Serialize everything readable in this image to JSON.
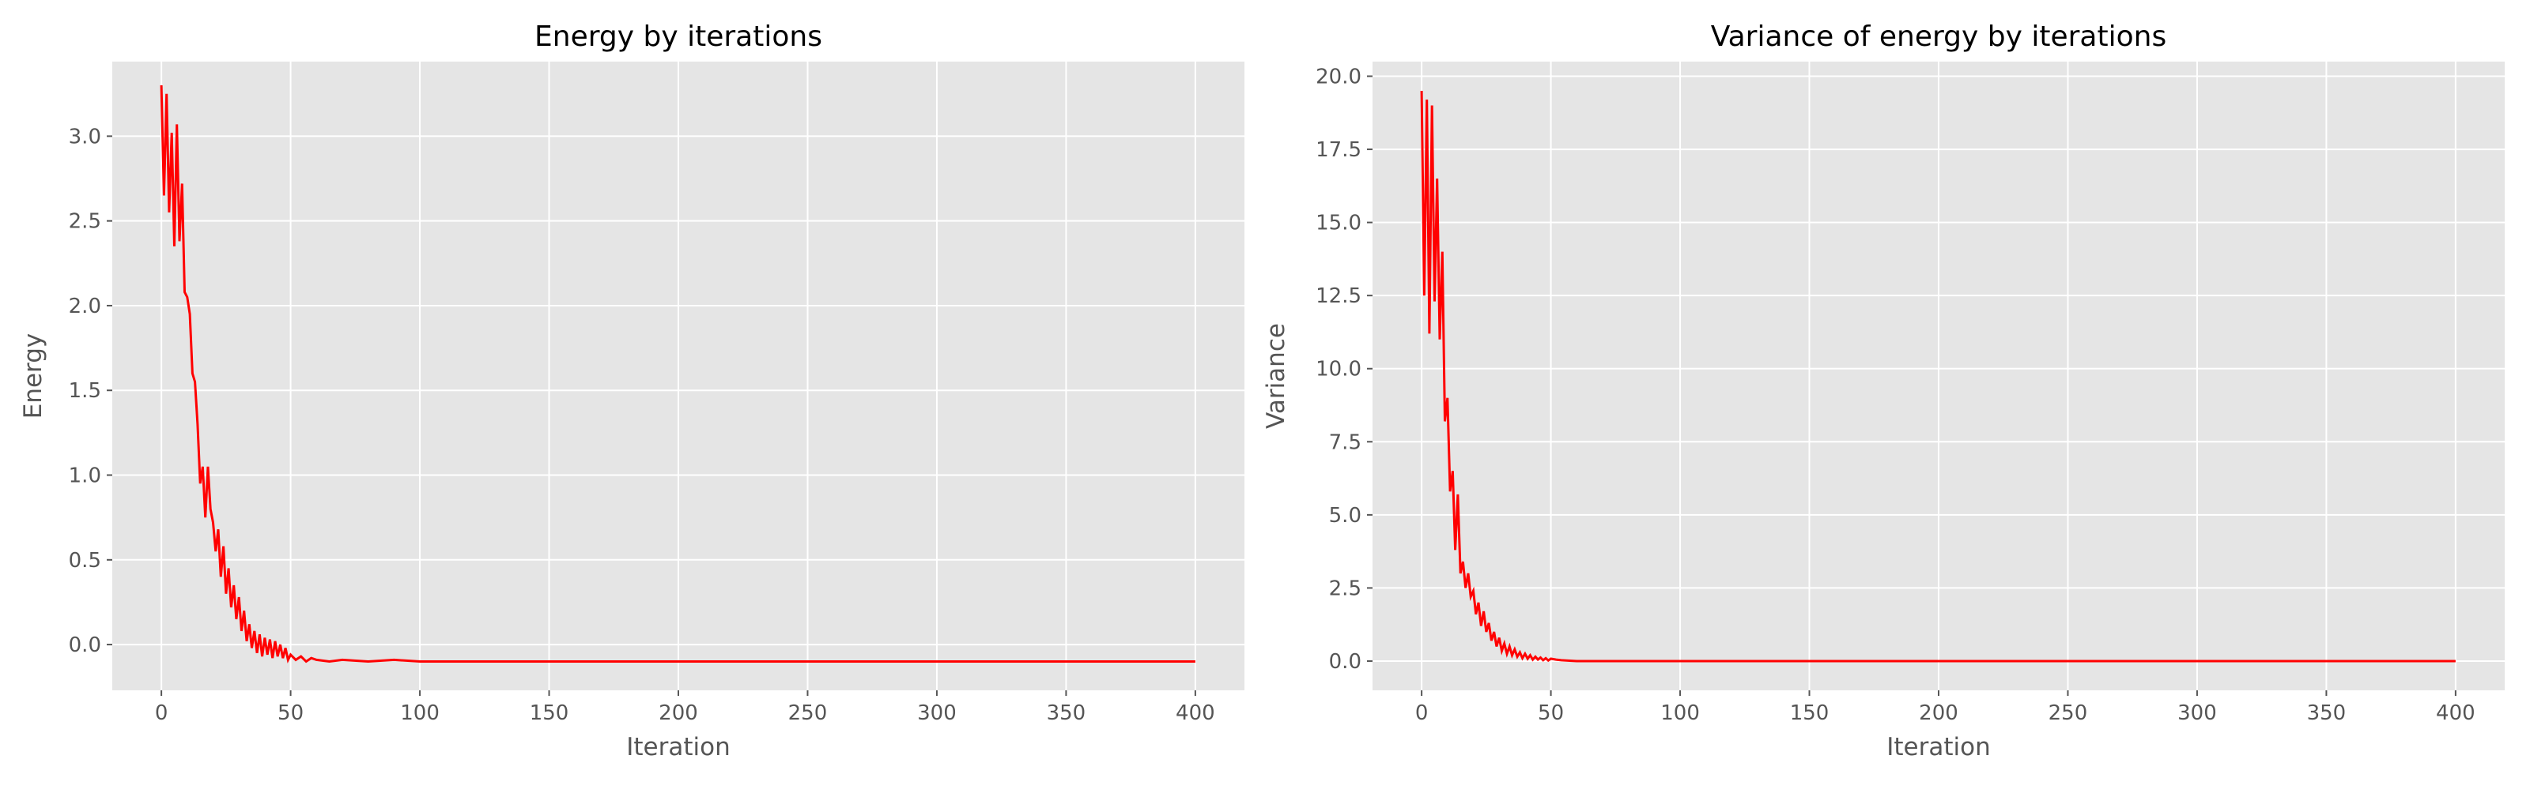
{
  "colors": {
    "plot_background": "#E5E5E5",
    "grid": "#FFFFFF",
    "line": "#FF0000",
    "text": "#555555",
    "title": "#000000"
  },
  "chart_data": [
    {
      "type": "line",
      "title": "Energy by iterations",
      "xlabel": "Iteration",
      "ylabel": "Energy",
      "xlim": [
        -19,
        419
      ],
      "ylim": [
        -0.27,
        3.44
      ],
      "xticks": [
        0,
        50,
        100,
        150,
        200,
        250,
        300,
        350,
        400
      ],
      "yticks": [
        0.0,
        0.5,
        1.0,
        1.5,
        2.0,
        2.5,
        3.0
      ],
      "ytick_labels": [
        "0.0",
        "0.5",
        "1.0",
        "1.5",
        "2.0",
        "2.5",
        "3.0"
      ],
      "grid": true,
      "legend": "none",
      "series": [
        {
          "color": "#FF0000",
          "x": [
            0,
            1,
            2,
            3,
            4,
            5,
            6,
            7,
            8,
            9,
            10,
            11,
            12,
            13,
            14,
            15,
            16,
            17,
            18,
            19,
            20,
            21,
            22,
            23,
            24,
            25,
            26,
            27,
            28,
            29,
            30,
            31,
            32,
            33,
            34,
            35,
            36,
            37,
            38,
            39,
            40,
            41,
            42,
            43,
            44,
            45,
            46,
            47,
            48,
            49,
            50,
            52,
            54,
            56,
            58,
            60,
            65,
            70,
            80,
            90,
            100,
            120,
            140,
            160,
            180,
            200,
            220,
            240,
            260,
            280,
            300,
            320,
            340,
            360,
            380,
            400
          ],
          "y": [
            3.3,
            2.65,
            3.25,
            2.55,
            3.02,
            2.35,
            3.07,
            2.38,
            2.72,
            2.08,
            2.05,
            1.95,
            1.6,
            1.55,
            1.3,
            0.95,
            1.05,
            0.75,
            1.05,
            0.8,
            0.72,
            0.55,
            0.68,
            0.4,
            0.58,
            0.3,
            0.45,
            0.22,
            0.35,
            0.15,
            0.28,
            0.08,
            0.2,
            0.02,
            0.12,
            -0.02,
            0.08,
            -0.05,
            0.06,
            -0.07,
            0.04,
            -0.06,
            0.03,
            -0.08,
            0.02,
            -0.07,
            0.0,
            -0.08,
            -0.02,
            -0.09,
            -0.06,
            -0.09,
            -0.07,
            -0.1,
            -0.08,
            -0.09,
            -0.1,
            -0.09,
            -0.1,
            -0.09,
            -0.1,
            -0.1,
            -0.1,
            -0.1,
            -0.1,
            -0.1,
            -0.1,
            -0.1,
            -0.1,
            -0.1,
            -0.1,
            -0.1,
            -0.1,
            -0.1,
            -0.1,
            -0.1
          ]
        }
      ]
    },
    {
      "type": "line",
      "title": "Variance of energy by iterations",
      "xlabel": "Iteration",
      "ylabel": "Variance",
      "xlim": [
        -19,
        419
      ],
      "ylim": [
        -1.0,
        20.5
      ],
      "xticks": [
        0,
        50,
        100,
        150,
        200,
        250,
        300,
        350,
        400
      ],
      "yticks": [
        0.0,
        2.5,
        5.0,
        7.5,
        10.0,
        12.5,
        15.0,
        17.5,
        20.0
      ],
      "ytick_labels": [
        "0.0",
        "2.5",
        "5.0",
        "7.5",
        "10.0",
        "12.5",
        "15.0",
        "17.5",
        "20.0"
      ],
      "grid": true,
      "legend": "none",
      "series": [
        {
          "color": "#FF0000",
          "x": [
            0,
            1,
            2,
            3,
            4,
            5,
            6,
            7,
            8,
            9,
            10,
            11,
            12,
            13,
            14,
            15,
            16,
            17,
            18,
            19,
            20,
            21,
            22,
            23,
            24,
            25,
            26,
            27,
            28,
            29,
            30,
            31,
            32,
            33,
            34,
            35,
            36,
            37,
            38,
            39,
            40,
            41,
            42,
            43,
            44,
            45,
            46,
            47,
            48,
            49,
            50,
            52,
            54,
            56,
            58,
            60,
            65,
            70,
            80,
            90,
            100,
            120,
            140,
            160,
            180,
            200,
            220,
            240,
            260,
            280,
            300,
            320,
            340,
            360,
            380,
            400
          ],
          "y": [
            19.5,
            12.5,
            19.2,
            11.2,
            19.0,
            12.3,
            16.5,
            11.0,
            14.0,
            8.2,
            9.0,
            5.8,
            6.5,
            3.8,
            5.7,
            3.0,
            3.4,
            2.5,
            3.0,
            2.2,
            2.4,
            1.6,
            2.0,
            1.2,
            1.7,
            1.0,
            1.3,
            0.7,
            1.0,
            0.5,
            0.8,
            0.35,
            0.6,
            0.25,
            0.5,
            0.2,
            0.4,
            0.15,
            0.3,
            0.1,
            0.25,
            0.08,
            0.2,
            0.05,
            0.15,
            0.05,
            0.12,
            0.03,
            0.1,
            0.02,
            0.08,
            0.05,
            0.03,
            0.02,
            0.01,
            0.0,
            0.0,
            0.0,
            0.0,
            0.0,
            0.0,
            0.0,
            0.0,
            0.0,
            0.0,
            0.0,
            0.0,
            0.0,
            0.0,
            0.0,
            0.0,
            0.0,
            0.0,
            0.0,
            0.0,
            0.0
          ]
        }
      ]
    }
  ]
}
